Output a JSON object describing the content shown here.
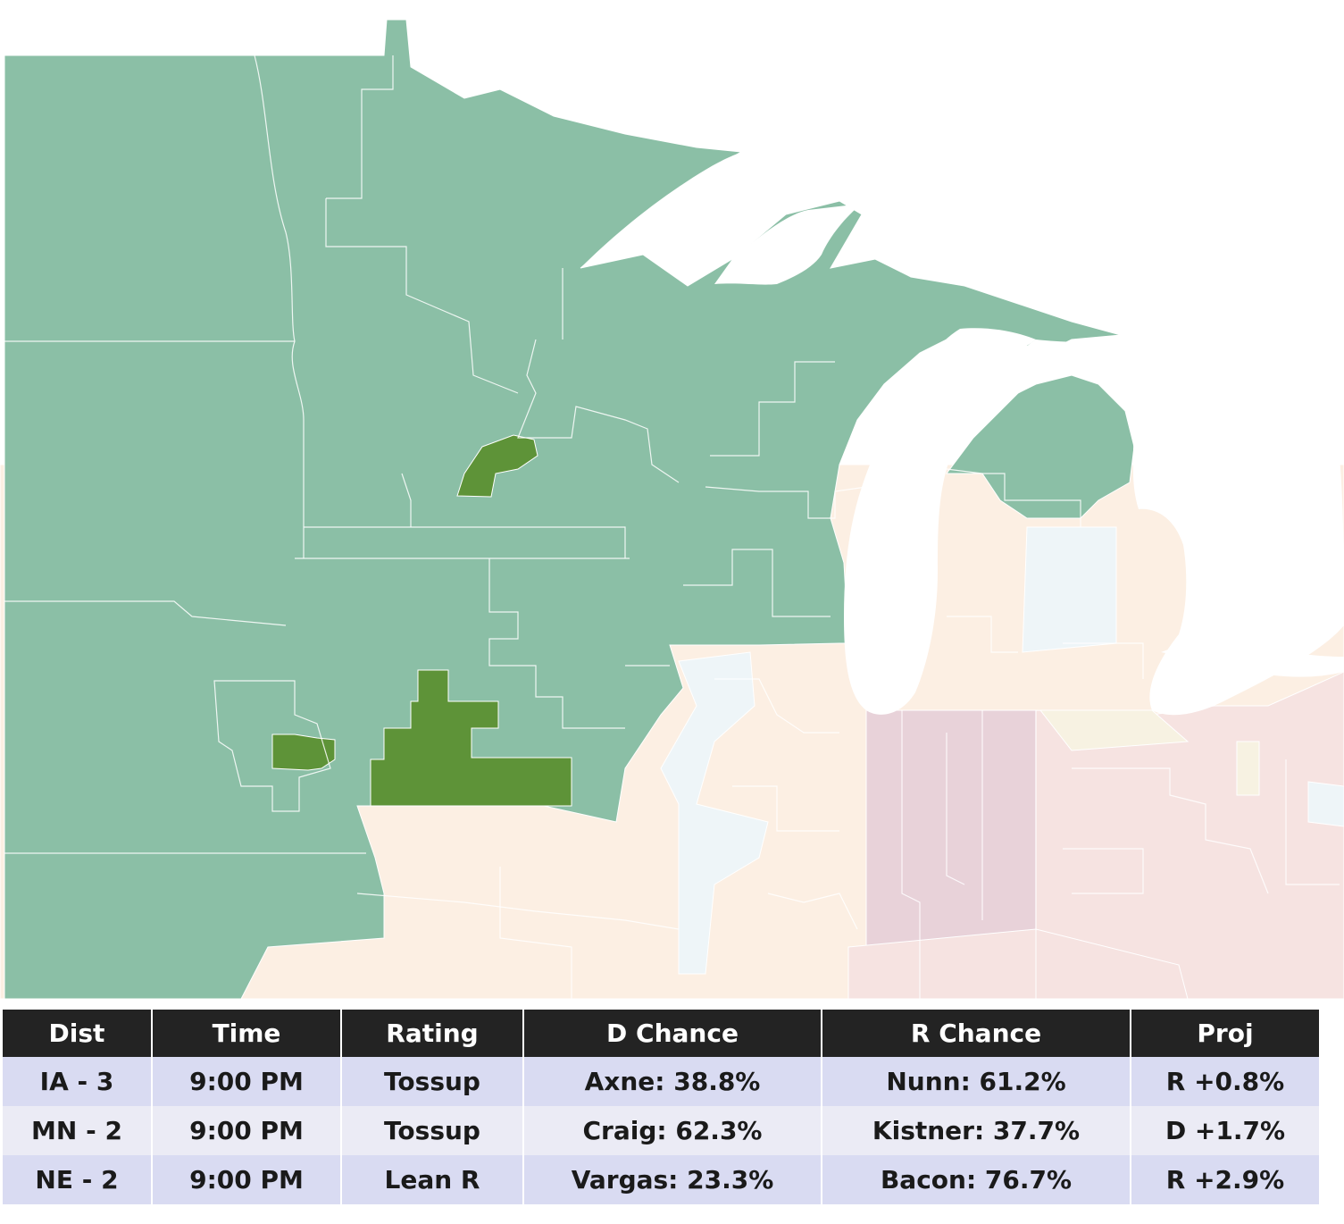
{
  "map": {
    "colors": {
      "called_light": "#8bbfa6",
      "called_dark": "#5e9338",
      "pending_tan": "#fcefe3",
      "pending_blue": "#eef5f8",
      "pending_pink": "#f6e3e1",
      "pending_mauve": "#e8d2d9",
      "pending_yellow": "#f7f2e2",
      "water": "#ffffff"
    },
    "highlighted_districts": [
      "IA - 3",
      "MN - 2",
      "NE - 2"
    ]
  },
  "table": {
    "headers": [
      "Dist",
      "Time",
      "Rating",
      "D Chance",
      "R Chance",
      "Proj"
    ],
    "rows": [
      {
        "dist": "IA - 3",
        "time": "9:00 PM",
        "rating": "Tossup",
        "d_chance": "Axne: 38.8%",
        "r_chance": "Nunn: 61.2%",
        "proj": "R +0.8%"
      },
      {
        "dist": "MN - 2",
        "time": "9:00 PM",
        "rating": "Tossup",
        "d_chance": "Craig: 62.3%",
        "r_chance": "Kistner: 37.7%",
        "proj": "D +1.7%"
      },
      {
        "dist": "NE - 2",
        "time": "9:00 PM",
        "rating": "Lean R",
        "d_chance": "Vargas: 23.3%",
        "r_chance": "Bacon: 76.7%",
        "proj": "R +2.9%"
      }
    ]
  }
}
